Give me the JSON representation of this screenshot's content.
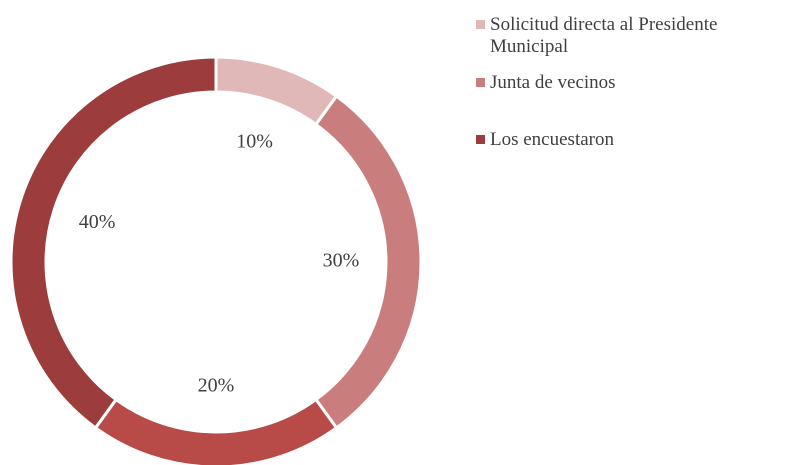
{
  "chart_data": {
    "type": "donut",
    "categories": [
      "Solicitud directa al Presidente Municipal",
      "Junta de vecinos",
      null,
      "Los encuestaron"
    ],
    "values": [
      10,
      30,
      20,
      40
    ],
    "value_labels": [
      "10%",
      "30%",
      "20%",
      "40%"
    ],
    "colors": [
      "#dfb8b7",
      "#c97e7d",
      "#b84a47",
      "#9c3c3c"
    ]
  }
}
